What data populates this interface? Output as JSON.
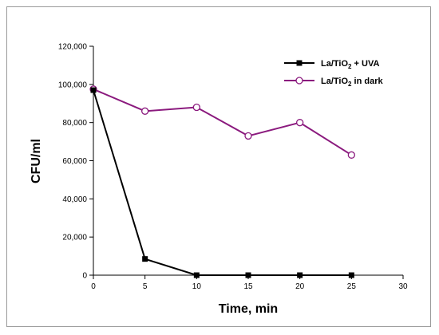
{
  "chart_data": {
    "type": "line",
    "xlabel": "Time, min",
    "ylabel": "CFU/ml",
    "xlim": [
      0,
      30
    ],
    "ylim": [
      0,
      120000
    ],
    "x_ticks": [
      0,
      5,
      10,
      15,
      20,
      25,
      30
    ],
    "y_ticks": [
      0,
      20000,
      40000,
      60000,
      80000,
      100000,
      120000
    ],
    "x_tick_labels": [
      "0",
      "5",
      "10",
      "15",
      "20",
      "25",
      "30"
    ],
    "y_tick_labels": [
      "0",
      "20,000",
      "40,000",
      "60,000",
      "80,000",
      "100,000",
      "120,000"
    ],
    "grid": false,
    "legend_position": "top-right",
    "series": [
      {
        "name_parts": [
          "La/TiO",
          "2",
          " + UVA"
        ],
        "color": "#000000",
        "marker": "filled-square",
        "x": [
          0,
          5,
          10,
          15,
          20,
          25
        ],
        "y": [
          97000,
          8500,
          0,
          0,
          0,
          0
        ]
      },
      {
        "name_parts": [
          "La/TiO",
          "2",
          " in dark"
        ],
        "color": "#8b1a7e",
        "marker": "open-circle",
        "x": [
          0,
          5,
          10,
          15,
          20,
          25
        ],
        "y": [
          97500,
          86000,
          88000,
          73000,
          80000,
          63000
        ]
      }
    ]
  }
}
